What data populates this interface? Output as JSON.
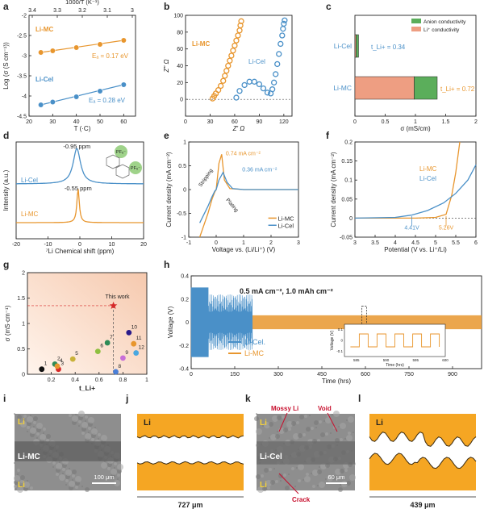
{
  "panels": {
    "a": {
      "letter": "a",
      "top_xlabel": "1000/T (K⁻¹)",
      "top_ticks": [
        "3.4",
        "3.3",
        "3.2",
        "3.1",
        "3"
      ],
      "ylabel": "Log (σ (S cm⁻¹))",
      "xlabel": "T (·C)",
      "series_mc": "Li-MC",
      "series_cel": "Li-Cel",
      "ea_mc": "Eₐ = 0.17 eV",
      "ea_cel": "Eₐ = 0.28 eV"
    },
    "b": {
      "letter": "b",
      "ylabel": "Z'' Ω",
      "xlabel": "Z' Ω",
      "label_mc": "Li-MC",
      "label_cel": "Li-Cel"
    },
    "c": {
      "letter": "c",
      "legend_anion": "Anion conductivity",
      "legend_li": "Li⁺ conductivity",
      "row_cel": "Li-Cel",
      "row_mc": "Li-MC",
      "t_cel": "t_Li+ = 0.34",
      "t_mc": "t_Li+ = 0.72",
      "xlabel": "σ (mS/cm)"
    },
    "d": {
      "letter": "d",
      "ylabel": "Intensity (a.u.)",
      "xlabel": "⁷Li Chemical shift (ppm)",
      "peak_cel": "-0.95 ppm",
      "peak_mc": "-0.55 ppm",
      "label_cel": "Li-Cel",
      "label_mc": "Li-MC",
      "pf6": "PF₆⁻"
    },
    "e": {
      "letter": "e",
      "ylabel": "Current density (mA cm⁻²)",
      "xlabel": "Voltage vs. (Li/Li⁺) (V)",
      "ann_mc": "0.74 mA cm⁻²",
      "ann_cel": "0.36 mA cm⁻²",
      "stripping": "Stripping",
      "plating": "Plating",
      "legend_mc": "Li-MC",
      "legend_cel": "Li-Cel"
    },
    "f": {
      "letter": "f",
      "ylabel": "Current density (mA cm⁻²)",
      "xlabel": "Potential (V vs. Li⁺/Li)",
      "label_mc": "Li-MC",
      "label_cel": "Li-Cel",
      "ann_cel": "4.41V",
      "ann_mc": "5.26V"
    },
    "g": {
      "letter": "g",
      "ylabel": "σ (mS·cm⁻¹)",
      "xlabel": "t_Li+",
      "this_work": "This work"
    },
    "h": {
      "letter": "h",
      "ylabel": "Voltage (V)",
      "xlabel": "Time (hrs)",
      "condition": "0.5 mA cm⁻², 1.0 mAh cm⁻²",
      "legend_cel": "Li-Cel.",
      "legend_mc": "Li-MC",
      "inset_ylabel": "Voltage (V)",
      "inset_xlabel": "Time (hrs)"
    },
    "i": {
      "letter": "i",
      "li_top": "Li",
      "li_bottom": "Li",
      "center": "Li-MC",
      "scale": "100 μm"
    },
    "j": {
      "letter": "j",
      "li": "Li",
      "width": "727 μm"
    },
    "k": {
      "letter": "k",
      "li_top": "Li",
      "li_bottom": "Li",
      "center": "Li-Cel",
      "mossy": "Mossy Li",
      "void": "Void",
      "crack": "Crack",
      "scale": "60 μm"
    },
    "l": {
      "letter": "l",
      "li": "Li",
      "width": "439 μm"
    }
  },
  "colors": {
    "mc": "#E8962E",
    "cel": "#4A90C8",
    "anion": "#5BAE5B",
    "li": "#EE9E82",
    "lithium_metal": "#F5A623",
    "this_work": "#D62828"
  },
  "chart_data": [
    {
      "panel": "a",
      "type": "line",
      "xlabel": "T (·C)",
      "ylabel": "Log (σ (S cm⁻¹))",
      "xlim": [
        20,
        65
      ],
      "ylim": [
        -4.5,
        -2
      ],
      "xticks": [
        20,
        30,
        40,
        50,
        60
      ],
      "yticks": [
        -4.5,
        -4,
        -3.5,
        -3,
        -2.5,
        -2
      ],
      "series": [
        {
          "name": "Li-MC",
          "x": [
            25,
            30,
            40,
            50,
            60
          ],
          "y": [
            -2.92,
            -2.88,
            -2.8,
            -2.72,
            -2.62
          ]
        },
        {
          "name": "Li-Cel",
          "x": [
            25,
            30,
            40,
            50,
            60
          ],
          "y": [
            -4.22,
            -4.15,
            -4.02,
            -3.88,
            -3.72
          ]
        }
      ]
    },
    {
      "panel": "b",
      "type": "scatter",
      "xlabel": "Z' Ω",
      "ylabel": "Z'' Ω",
      "xlim": [
        0,
        130
      ],
      "ylim": [
        -20,
        100
      ],
      "xticks": [
        0,
        30,
        60,
        90,
        120
      ],
      "yticks": [
        0,
        20,
        40,
        60,
        80,
        100
      ],
      "series": [
        {
          "name": "Li-MC",
          "x": [
            33,
            35,
            37,
            40,
            43,
            46,
            48,
            50,
            52,
            54,
            56,
            58,
            60,
            62,
            64,
            66,
            67,
            68
          ],
          "y": [
            1,
            4,
            7,
            11,
            16,
            22,
            28,
            34,
            40,
            46,
            52,
            58,
            64,
            70,
            76,
            82,
            88,
            93
          ]
        },
        {
          "name": "Li-Cel",
          "x": [
            62,
            66,
            72,
            78,
            84,
            90,
            95,
            100,
            104,
            106,
            108,
            110,
            112,
            114,
            116,
            118,
            119,
            120,
            121
          ],
          "y": [
            2,
            10,
            17,
            21,
            21,
            18,
            13,
            8,
            7,
            12,
            20,
            30,
            42,
            54,
            66,
            76,
            84,
            90,
            94
          ]
        }
      ]
    },
    {
      "panel": "c",
      "type": "bar",
      "categories": [
        "Li-Cel",
        "Li-MC"
      ],
      "xlabel": "σ (mS/cm)",
      "xlim": [
        0,
        2
      ],
      "xticks": [
        0,
        0.5,
        1,
        1.5,
        2
      ],
      "series": [
        {
          "name": "Li⁺ conductivity",
          "values": [
            0.02,
            0.98
          ]
        },
        {
          "name": "Anion conductivity",
          "values": [
            0.04,
            0.38
          ]
        }
      ]
    },
    {
      "panel": "d",
      "type": "line",
      "xlabel": "⁷Li Chemical shift (ppm)",
      "ylabel": "Intensity (a.u.)",
      "xlim": [
        -20,
        20
      ],
      "xticks": [
        -20,
        -10,
        0,
        10,
        20
      ],
      "series": [
        {
          "name": "Li-Cel",
          "peak": -0.95
        },
        {
          "name": "Li-MC",
          "peak": -0.55
        }
      ]
    },
    {
      "panel": "e",
      "type": "line",
      "xlabel": "Voltage vs. (Li/Li⁺) (V)",
      "ylabel": "Current density (mA cm⁻²)",
      "xlim": [
        -1,
        3
      ],
      "ylim": [
        -1,
        1
      ],
      "xticks": [
        -1,
        0,
        1,
        2,
        3
      ],
      "yticks": [
        -1,
        -0.5,
        0,
        0.5,
        1
      ],
      "series": [
        {
          "name": "Li-MC",
          "x": [
            -0.6,
            -0.3,
            -0.15,
            -0.05,
            0,
            0.1,
            0.2,
            0.3,
            0.5,
            1,
            2,
            3
          ],
          "y": [
            -1.0,
            -0.5,
            -0.2,
            -0.05,
            0,
            0.55,
            0.74,
            0.2,
            0.02,
            0,
            0,
            0
          ]
        },
        {
          "name": "Li-Cel",
          "x": [
            -0.6,
            -0.3,
            -0.15,
            -0.05,
            0,
            0.1,
            0.25,
            0.4,
            0.6,
            1,
            2,
            3
          ],
          "y": [
            -0.7,
            -0.35,
            -0.15,
            -0.03,
            0,
            0.2,
            0.36,
            0.15,
            0.02,
            0,
            0,
            0
          ]
        }
      ]
    },
    {
      "panel": "f",
      "type": "line",
      "xlabel": "Potential (V vs. Li⁺/Li)",
      "ylabel": "Current density (mA cm⁻²)",
      "xlim": [
        3,
        6
      ],
      "ylim": [
        -0.05,
        0.2
      ],
      "xticks": [
        3,
        3.5,
        4,
        4.5,
        5,
        5.5,
        6
      ],
      "yticks": [
        -0.05,
        0,
        0.05,
        0.1,
        0.15,
        0.2
      ],
      "series": [
        {
          "name": "Li-MC",
          "x": [
            3,
            4,
            4.5,
            5,
            5.26,
            5.4,
            5.5,
            5.6
          ],
          "y": [
            0,
            0,
            0,
            0.002,
            0.01,
            0.06,
            0.12,
            0.2
          ]
        },
        {
          "name": "Li-Cel",
          "x": [
            3,
            4,
            4.41,
            4.8,
            5.2,
            5.5,
            5.8,
            6
          ],
          "y": [
            0,
            0.002,
            0.008,
            0.02,
            0.04,
            0.065,
            0.1,
            0.14
          ]
        }
      ]
    },
    {
      "panel": "g",
      "type": "scatter",
      "xlabel": "t_Li+",
      "ylabel": "σ (mS·cm⁻¹)",
      "xlim": [
        0,
        1
      ],
      "ylim": [
        0,
        2
      ],
      "xticks": [
        0.2,
        0.4,
        0.6,
        0.8,
        1
      ],
      "yticks": [
        0,
        0.5,
        1,
        1.5,
        2
      ],
      "points": [
        {
          "label": "1",
          "x": 0.12,
          "y": 0.1,
          "color": "#111111"
        },
        {
          "label": "2",
          "x": 0.23,
          "y": 0.2,
          "color": "#2E8B57"
        },
        {
          "label": "3",
          "x": 0.26,
          "y": 0.1,
          "color": "#D62828"
        },
        {
          "label": "4",
          "x": 0.25,
          "y": 0.16,
          "color": "#E8962E"
        },
        {
          "label": "5",
          "x": 0.38,
          "y": 0.3,
          "color": "#C9B23A"
        },
        {
          "label": "6",
          "x": 0.59,
          "y": 0.45,
          "color": "#8FBF3F"
        },
        {
          "label": "7",
          "x": 0.67,
          "y": 0.62,
          "color": "#2E8B57"
        },
        {
          "label": "8",
          "x": 0.74,
          "y": 0.05,
          "color": "#4A7FD8"
        },
        {
          "label": "9",
          "x": 0.8,
          "y": 0.32,
          "color": "#C86ED8"
        },
        {
          "label": "10",
          "x": 0.85,
          "y": 0.82,
          "color": "#2A1A8A"
        },
        {
          "label": "11",
          "x": 0.89,
          "y": 0.6,
          "color": "#E8962E"
        },
        {
          "label": "12",
          "x": 0.91,
          "y": 0.42,
          "color": "#4AA8E0"
        },
        {
          "label": "This work",
          "x": 0.72,
          "y": 1.35,
          "color": "#D62828"
        }
      ]
    },
    {
      "panel": "h",
      "type": "line",
      "xlabel": "Time (hrs)",
      "ylabel": "Voltage (V)",
      "xlim": [
        0,
        1000
      ],
      "ylim": [
        -0.4,
        0.4
      ],
      "xticks": [
        0,
        150,
        300,
        450,
        600,
        750,
        900
      ],
      "yticks": [
        -0.4,
        -0.2,
        0,
        0.2,
        0.4
      ],
      "series": [
        {
          "name": "Li-Cel.",
          "t_end": 210,
          "amplitude": 0.3
        },
        {
          "name": "Li-MC",
          "t_end": 1000,
          "amplitude": 0.06
        }
      ],
      "inset": {
        "xticks": [
          585,
          590,
          595,
          600
        ],
        "yticks": [
          -0.1,
          0,
          0.1
        ]
      }
    }
  ]
}
